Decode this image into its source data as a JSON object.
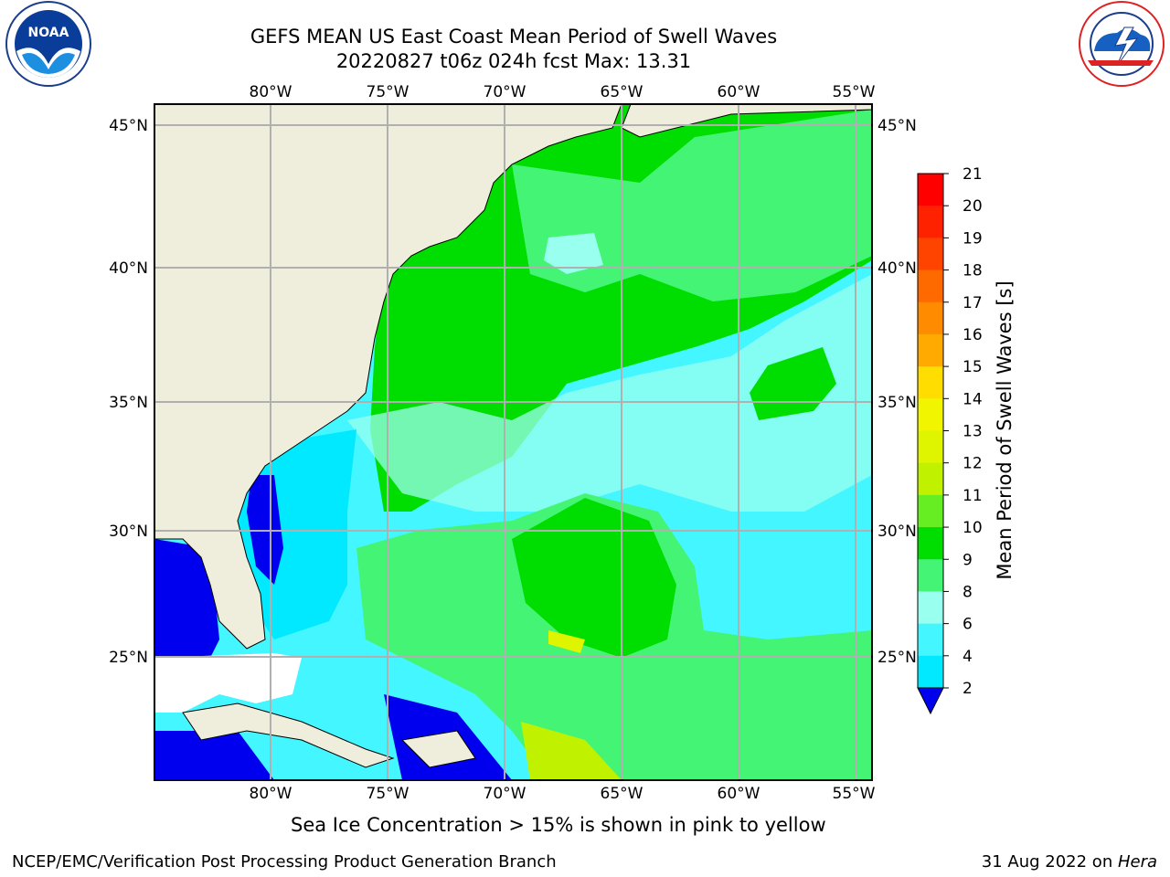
{
  "header": {
    "title": "GEFS MEAN US East Coast Mean Period of Swell Waves",
    "subtitle": "20220827 t06z 024h fcst   Max: 13.31"
  },
  "map": {
    "lon_labels": [
      "80°W",
      "75°W",
      "70°W",
      "65°W",
      "60°W",
      "55°W"
    ],
    "lat_labels": [
      "45°N",
      "40°N",
      "35°N",
      "30°N",
      "25°N"
    ]
  },
  "colorbar": {
    "label": "Mean Period of Swell Waves [s]",
    "ticks": [
      "21",
      "20",
      "19",
      "18",
      "17",
      "16",
      "15",
      "14",
      "13",
      "12",
      "11",
      "10",
      "9",
      "8",
      "6",
      "4",
      "2"
    ],
    "colors": [
      "#ff0000",
      "#ff2200",
      "#ff4400",
      "#ff6a00",
      "#ff8c00",
      "#ffaa00",
      "#ffdd00",
      "#f2f500",
      "#dff500",
      "#c0f200",
      "#66ee22",
      "#00dd00",
      "#44f474",
      "#99ffee",
      "#44f6ff",
      "#00e9ff",
      "#0080ff"
    ],
    "extend_color": "#0000ee"
  },
  "logos": {
    "noaa": "NOAA",
    "nws": "NATIONAL WEATHER SERVICE"
  },
  "footer": {
    "note": "Sea Ice Concentration > 15% is shown in pink to yellow",
    "credit": "NCEP/EMC/Verification Post Processing Product Generation Branch",
    "date_prefix": "31 Aug 2022 on ",
    "machine": "Hera"
  }
}
